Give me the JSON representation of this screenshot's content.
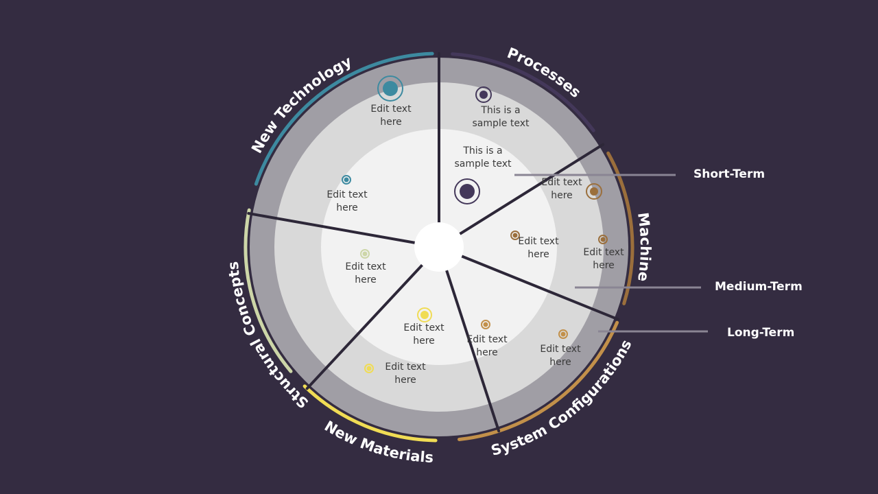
{
  "colors": {
    "background": "#342c41",
    "outer_ring": "#a09ea5",
    "middle_ring": "#d9d9d9",
    "inner_ring": "#f2f2f2",
    "divider": "#2d2738",
    "center": "#ffffff",
    "term_line": "#8a8594"
  },
  "segments": [
    {
      "title": "Processes",
      "color": "#44385a",
      "notes": [
        {
          "ring": "long",
          "text": [
            "This is a",
            "sample text"
          ],
          "marker": "large"
        },
        {
          "ring": "short",
          "text": [
            "This is a",
            "sample text"
          ],
          "marker": "xlarge"
        }
      ]
    },
    {
      "title": "Machine",
      "color": "#9b6f3c",
      "notes": [
        {
          "ring": "medium",
          "text": [
            "Edit text",
            "here"
          ],
          "marker": "large"
        },
        {
          "ring": "long",
          "text": [
            "Edit text",
            "here"
          ],
          "marker": "small"
        },
        {
          "ring": "short",
          "text": [
            "Edit text",
            "here"
          ],
          "marker": "small"
        }
      ]
    },
    {
      "title": "System Configurations",
      "color": "#c2904a",
      "notes": [
        {
          "ring": "medium",
          "text": [
            "Edit text",
            "here"
          ],
          "marker": "small"
        },
        {
          "ring": "long",
          "text": [
            "Edit text",
            "here"
          ],
          "marker": "small"
        }
      ]
    },
    {
      "title": "New Materials",
      "color": "#f0dc55",
      "notes": [
        {
          "ring": "short",
          "text": [
            "Edit text",
            "here"
          ],
          "marker": "medium"
        },
        {
          "ring": "medium",
          "text": [
            "Edit text",
            "here"
          ],
          "marker": "small"
        }
      ]
    },
    {
      "title": "Structural Concepts",
      "color": "#cdd6a8",
      "notes": [
        {
          "ring": "short",
          "text": [
            "Edit text",
            "here"
          ],
          "marker": "small"
        }
      ]
    },
    {
      "title": "New Technology",
      "color": "#3d8aa0",
      "notes": [
        {
          "ring": "long",
          "text": [
            "Edit text",
            "here"
          ],
          "marker": "xlarge"
        },
        {
          "ring": "short",
          "text": [
            "Edit text",
            "here"
          ],
          "marker": "small"
        }
      ]
    }
  ],
  "terms": [
    {
      "name": "short",
      "label": "Short-Term"
    },
    {
      "name": "medium",
      "label": "Medium-Term"
    },
    {
      "name": "long",
      "label": "Long-Term"
    }
  ]
}
